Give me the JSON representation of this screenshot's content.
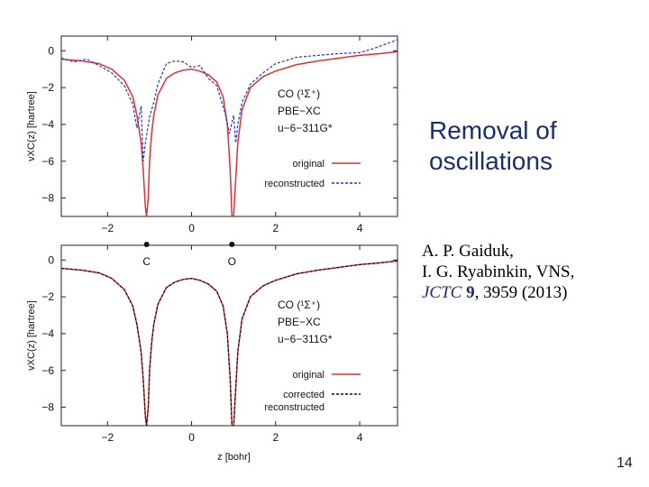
{
  "slide": {
    "title_lines": [
      "Removal of",
      "oscillations"
    ],
    "authors_line1": "A. P. Gaiduk,",
    "authors_line2": "I. G. Ryabinkin, VNS,",
    "journal": "JCTC",
    "volume": "9",
    "pages_year": ", 3959 (2013)",
    "page_number": "14"
  },
  "chart_data": [
    {
      "type": "line",
      "panel": "top",
      "ylabel": "vXC(z) [hartree]",
      "xlim": [
        -3.1,
        4.9
      ],
      "ylim": [
        -9,
        0.8
      ],
      "xticks": [
        "−2",
        "0",
        "2",
        "4"
      ],
      "xtick_values": [
        -2,
        0,
        2,
        4
      ],
      "yticks": [
        "0",
        "−2",
        "−4",
        "−6",
        "−8"
      ],
      "ytick_values": [
        0,
        -2,
        -4,
        -6,
        -8
      ],
      "legend": {
        "lines": [
          "CO  (¹Σ⁺)",
          "PBE−XC",
          "u−6−311G*"
        ],
        "entries": [
          "original",
          "reconstructed"
        ],
        "placement": "right"
      },
      "series": [
        {
          "name": "original",
          "color": "#e03030",
          "style": "solid",
          "x": [
            -3.1,
            -2.6,
            -2.2,
            -1.9,
            -1.6,
            -1.4,
            -1.3,
            -1.2,
            -1.15,
            -1.1,
            -1.07,
            -1.03,
            -1.0,
            -0.95,
            -0.9,
            -0.8,
            -0.6,
            -0.4,
            -0.2,
            0.0,
            0.2,
            0.4,
            0.6,
            0.75,
            0.85,
            0.92,
            0.96,
            1.0,
            1.05,
            1.1,
            1.2,
            1.4,
            1.7,
            2.0,
            2.5,
            3.0,
            3.5,
            4.0,
            4.5,
            4.9
          ],
          "y": [
            -0.45,
            -0.55,
            -0.7,
            -1.0,
            -1.6,
            -2.5,
            -3.5,
            -5.0,
            -6.5,
            -8.5,
            -9.0,
            -8.0,
            -6.0,
            -4.5,
            -3.5,
            -2.4,
            -1.5,
            -1.2,
            -1.05,
            -1.0,
            -1.1,
            -1.3,
            -1.7,
            -2.5,
            -4.0,
            -6.5,
            -9.0,
            -9.0,
            -7.0,
            -5.0,
            -3.2,
            -2.0,
            -1.4,
            -1.1,
            -0.75,
            -0.55,
            -0.4,
            -0.25,
            -0.15,
            -0.05
          ]
        },
        {
          "name": "reconstructed",
          "color": "#2233cc",
          "style": "dashed",
          "x": [
            -3.1,
            -2.8,
            -2.5,
            -2.2,
            -1.9,
            -1.6,
            -1.4,
            -1.3,
            -1.2,
            -1.15,
            -1.1,
            -1.0,
            -0.9,
            -0.8,
            -0.6,
            -0.4,
            -0.2,
            0.0,
            0.2,
            0.4,
            0.6,
            0.8,
            0.9,
            1.0,
            1.05,
            1.1,
            1.2,
            1.4,
            1.7,
            2.0,
            2.5,
            3.0,
            3.5,
            4.0,
            4.3,
            4.6,
            4.9
          ],
          "y": [
            -0.4,
            -0.6,
            -0.45,
            -0.8,
            -1.2,
            -1.9,
            -2.9,
            -4.2,
            -3.0,
            -6.0,
            -5.0,
            -3.6,
            -2.8,
            -1.8,
            -0.7,
            -0.55,
            -0.6,
            -0.9,
            -0.8,
            -1.5,
            -1.9,
            -3.4,
            -4.5,
            -3.5,
            -5.0,
            -4.0,
            -2.8,
            -1.8,
            -1.2,
            -0.7,
            -0.35,
            -0.25,
            -0.15,
            -0.1,
            0.1,
            0.35,
            0.6
          ]
        }
      ]
    },
    {
      "type": "line",
      "panel": "bottom",
      "ylabel": "vXC(z) [hartree]",
      "xlabel": "z  [bohr]",
      "xlim": [
        -3.1,
        4.9
      ],
      "ylim": [
        -9,
        0.8
      ],
      "xticks": [
        "−2",
        "0",
        "2",
        "4"
      ],
      "xtick_values": [
        -2,
        0,
        2,
        4
      ],
      "yticks": [
        "0",
        "−2",
        "−4",
        "−6",
        "−8"
      ],
      "ytick_values": [
        0,
        -2,
        -4,
        -6,
        -8
      ],
      "atoms": [
        {
          "label": "C",
          "z": -1.07
        },
        {
          "label": "O",
          "z": 0.96
        }
      ],
      "legend": {
        "lines": [
          "CO  (¹Σ⁺)",
          "PBE−XC",
          "u−6−311G*"
        ],
        "entries": [
          "original",
          "corrected\nreconstructed"
        ],
        "placement": "right"
      },
      "series": [
        {
          "name": "original",
          "color": "#e03030",
          "style": "solid",
          "x": [
            -3.1,
            -2.6,
            -2.2,
            -1.9,
            -1.6,
            -1.4,
            -1.3,
            -1.2,
            -1.15,
            -1.1,
            -1.07,
            -1.03,
            -1.0,
            -0.95,
            -0.9,
            -0.8,
            -0.6,
            -0.4,
            -0.2,
            0.0,
            0.2,
            0.4,
            0.6,
            0.75,
            0.85,
            0.92,
            0.96,
            1.0,
            1.05,
            1.1,
            1.2,
            1.4,
            1.7,
            2.0,
            2.5,
            3.0,
            3.5,
            4.0,
            4.5,
            4.9
          ],
          "y": [
            -0.45,
            -0.55,
            -0.7,
            -1.0,
            -1.6,
            -2.5,
            -3.5,
            -5.0,
            -6.5,
            -8.5,
            -9.0,
            -8.0,
            -6.0,
            -4.5,
            -3.5,
            -2.4,
            -1.5,
            -1.2,
            -1.05,
            -1.0,
            -1.1,
            -1.3,
            -1.7,
            -2.5,
            -4.0,
            -6.5,
            -9.0,
            -9.0,
            -7.0,
            -5.0,
            -3.2,
            -2.0,
            -1.4,
            -1.1,
            -0.75,
            -0.55,
            -0.4,
            -0.25,
            -0.15,
            -0.05
          ]
        },
        {
          "name": "corrected reconstructed",
          "color": "#111111",
          "style": "dashed",
          "x": [
            -3.1,
            -2.6,
            -2.2,
            -1.9,
            -1.6,
            -1.4,
            -1.3,
            -1.2,
            -1.15,
            -1.1,
            -1.07,
            -1.03,
            -1.0,
            -0.95,
            -0.9,
            -0.8,
            -0.6,
            -0.4,
            -0.2,
            0.0,
            0.2,
            0.4,
            0.6,
            0.75,
            0.85,
            0.92,
            0.96,
            1.0,
            1.05,
            1.1,
            1.2,
            1.4,
            1.7,
            2.0,
            2.5,
            3.0,
            3.5,
            4.0,
            4.5,
            4.9
          ],
          "y": [
            -0.45,
            -0.55,
            -0.7,
            -1.0,
            -1.6,
            -2.5,
            -3.5,
            -5.0,
            -6.5,
            -8.5,
            -9.0,
            -8.0,
            -6.0,
            -4.5,
            -3.5,
            -2.4,
            -1.5,
            -1.2,
            -1.05,
            -1.0,
            -1.1,
            -1.3,
            -1.7,
            -2.5,
            -4.0,
            -6.5,
            -9.0,
            -9.0,
            -7.0,
            -5.0,
            -3.2,
            -2.0,
            -1.4,
            -1.1,
            -0.75,
            -0.55,
            -0.4,
            -0.25,
            -0.15,
            -0.05
          ]
        }
      ]
    }
  ]
}
